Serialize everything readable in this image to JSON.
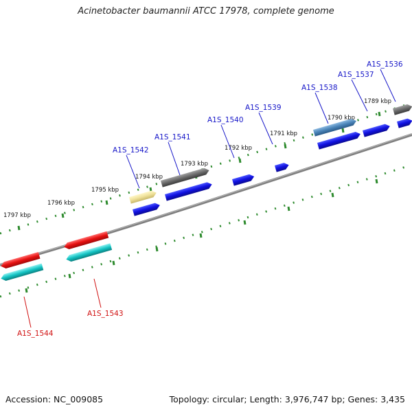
{
  "title": "Acinetobacter baumannii ATCC 17978, complete genome",
  "accession": "Accession: NC_009085",
  "summary": "Topology: circular; Length: 3,976,747 bp; Genes: 3,435",
  "colors": {
    "backbone": "#8a8a8a",
    "ticks": "#2e8b2e",
    "label_forward": "#1515c8",
    "label_reverse": "#d01010",
    "cds_blue": "#1010e0",
    "cds_gray": "#6a6a6a",
    "cds_steelblue": "#4a84b8",
    "cds_khaki": "#efe19a",
    "cds_red": "#e61010",
    "cds_cyan": "#14c4c4"
  },
  "scale": {
    "kbp_labels": [
      "1789 kbp",
      "1790 kbp",
      "1791 kbp",
      "1792 kbp",
      "1793 kbp",
      "1794 kbp",
      "1795 kbp",
      "1796 kbp",
      "1797 kbp"
    ]
  },
  "genes": [
    {
      "label": "A1S_1536",
      "strand": "forward"
    },
    {
      "label": "A1S_1537",
      "strand": "forward"
    },
    {
      "label": "A1S_1538",
      "strand": "forward"
    },
    {
      "label": "A1S_1539",
      "strand": "forward"
    },
    {
      "label": "A1S_1540",
      "strand": "forward"
    },
    {
      "label": "A1S_1541",
      "strand": "forward"
    },
    {
      "label": "A1S_1542",
      "strand": "forward"
    },
    {
      "label": "A1S_1543",
      "strand": "reverse"
    },
    {
      "label": "A1S_1544",
      "strand": "reverse"
    }
  ]
}
